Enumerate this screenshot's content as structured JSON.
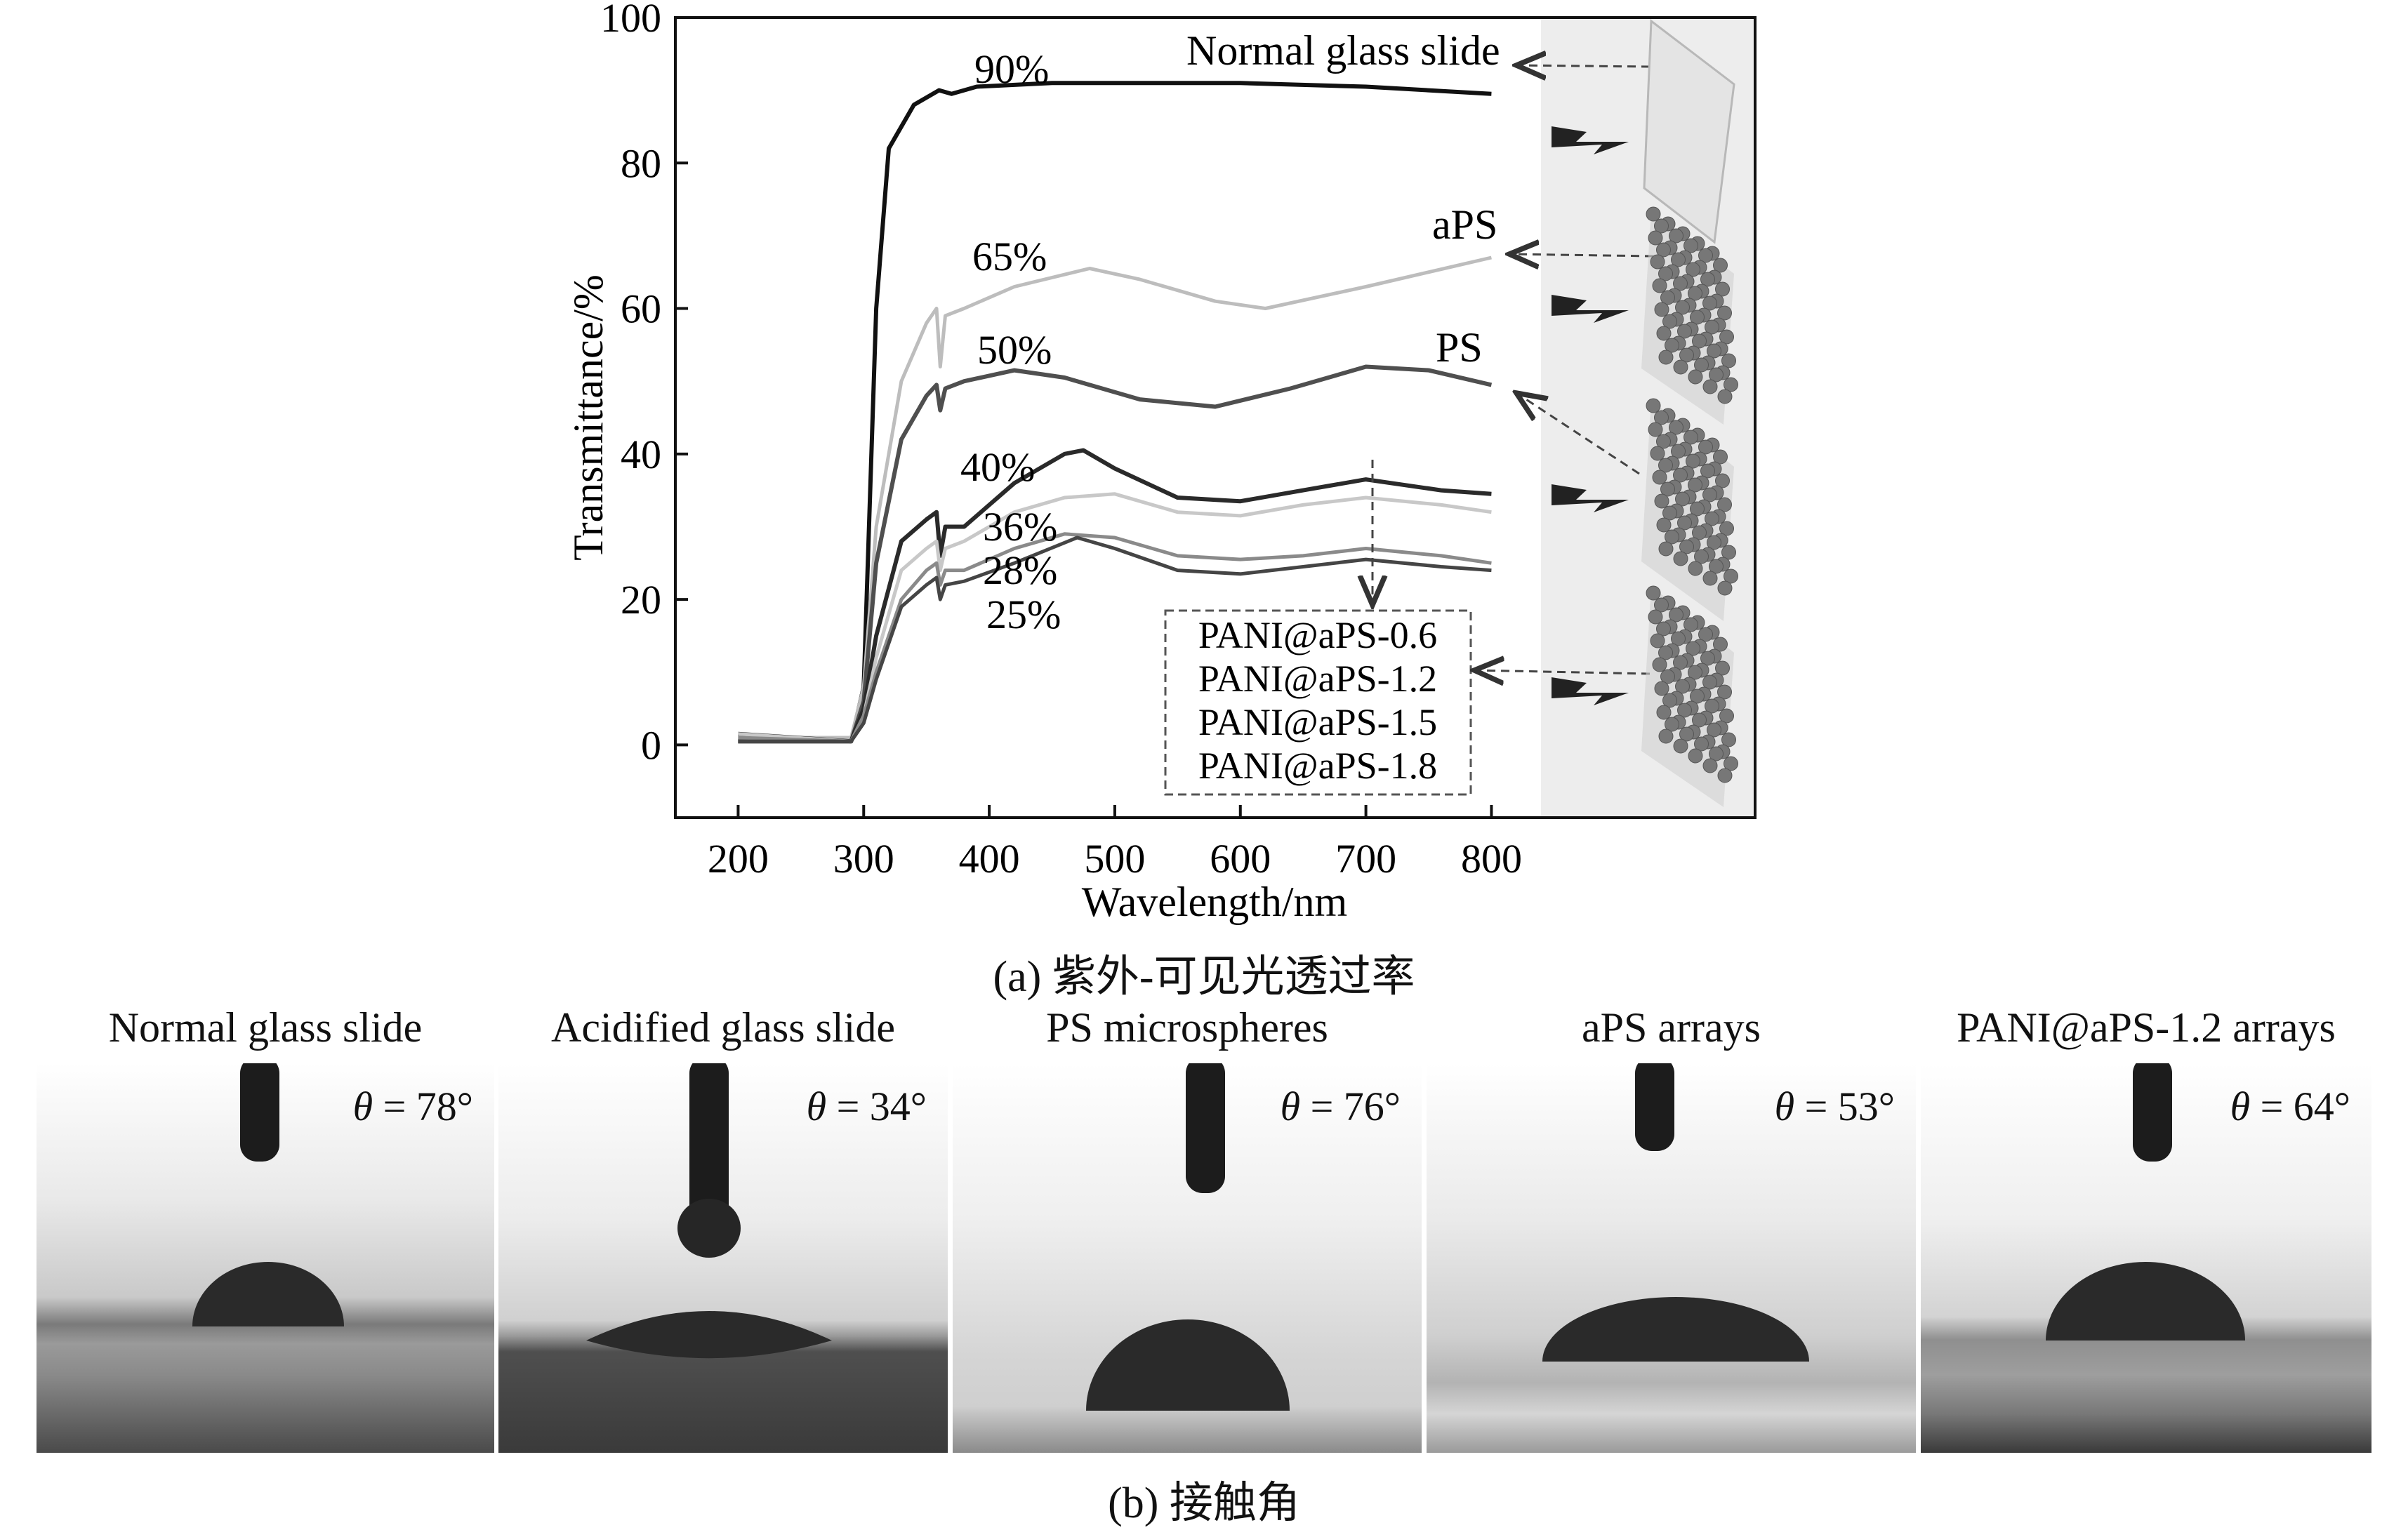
{
  "chart_data": {
    "type": "line",
    "xlabel": "Wavelength/nm",
    "ylabel": "Transmittance/%",
    "xlim": [
      150,
      1010
    ],
    "ylim": [
      -10,
      100
    ],
    "xticks": [
      200,
      300,
      400,
      500,
      600,
      700,
      800
    ],
    "yticks": [
      0,
      20,
      40,
      60,
      80,
      100
    ],
    "series": [
      {
        "name": "Normal glass slide",
        "color": "#111111",
        "width": 6,
        "points": [
          [
            200,
            0.5
          ],
          [
            290,
            0.5
          ],
          [
            300,
            8
          ],
          [
            310,
            60
          ],
          [
            320,
            82
          ],
          [
            340,
            88
          ],
          [
            360,
            90
          ],
          [
            370,
            89.5
          ],
          [
            390,
            90.5
          ],
          [
            450,
            91
          ],
          [
            600,
            91
          ],
          [
            700,
            90.5
          ],
          [
            800,
            89.5
          ]
        ]
      },
      {
        "name": "aPS",
        "color": "#bdbdbd",
        "width": 5,
        "points": [
          [
            200,
            1
          ],
          [
            290,
            1
          ],
          [
            300,
            8
          ],
          [
            310,
            30
          ],
          [
            330,
            50
          ],
          [
            350,
            58
          ],
          [
            358,
            60
          ],
          [
            361,
            52
          ],
          [
            365,
            59
          ],
          [
            380,
            60
          ],
          [
            420,
            63
          ],
          [
            480,
            65.5
          ],
          [
            520,
            64
          ],
          [
            580,
            61
          ],
          [
            620,
            60
          ],
          [
            700,
            63
          ],
          [
            800,
            67
          ]
        ]
      },
      {
        "name": "PS",
        "color": "#4f4f4f",
        "width": 6,
        "points": [
          [
            200,
            0.5
          ],
          [
            290,
            0.5
          ],
          [
            300,
            6
          ],
          [
            310,
            25
          ],
          [
            330,
            42
          ],
          [
            350,
            48
          ],
          [
            358,
            49.5
          ],
          [
            361,
            46
          ],
          [
            365,
            49
          ],
          [
            380,
            50
          ],
          [
            420,
            51.5
          ],
          [
            460,
            50.5
          ],
          [
            520,
            47.5
          ],
          [
            580,
            46.5
          ],
          [
            640,
            49
          ],
          [
            700,
            52
          ],
          [
            750,
            51.5
          ],
          [
            800,
            49.5
          ]
        ]
      },
      {
        "name": "PANI@aPS-0.6",
        "color": "#2a2a2a",
        "width": 6,
        "points": [
          [
            200,
            1.5
          ],
          [
            290,
            0.5
          ],
          [
            300,
            5
          ],
          [
            310,
            15
          ],
          [
            330,
            28
          ],
          [
            350,
            31
          ],
          [
            358,
            32
          ],
          [
            361,
            26
          ],
          [
            365,
            30
          ],
          [
            380,
            30
          ],
          [
            420,
            36
          ],
          [
            460,
            40
          ],
          [
            475,
            40.5
          ],
          [
            500,
            38
          ],
          [
            550,
            34
          ],
          [
            600,
            33.5
          ],
          [
            650,
            35
          ],
          [
            700,
            36.5
          ],
          [
            760,
            35
          ],
          [
            800,
            34.5
          ]
        ]
      },
      {
        "name": "PANI@aPS-1.2",
        "color": "#c8c8c8",
        "width": 5,
        "points": [
          [
            200,
            1.5
          ],
          [
            290,
            0.5
          ],
          [
            300,
            4
          ],
          [
            310,
            12
          ],
          [
            330,
            24
          ],
          [
            350,
            27
          ],
          [
            358,
            28
          ],
          [
            361,
            24
          ],
          [
            365,
            27
          ],
          [
            380,
            28
          ],
          [
            420,
            32
          ],
          [
            460,
            34
          ],
          [
            500,
            34.5
          ],
          [
            550,
            32
          ],
          [
            600,
            31.5
          ],
          [
            650,
            33
          ],
          [
            700,
            34
          ],
          [
            760,
            33
          ],
          [
            800,
            32
          ]
        ]
      },
      {
        "name": "PANI@aPS-1.5",
        "color": "#8a8a8a",
        "width": 5,
        "points": [
          [
            200,
            1
          ],
          [
            290,
            0.5
          ],
          [
            300,
            4
          ],
          [
            310,
            10
          ],
          [
            330,
            20
          ],
          [
            350,
            24
          ],
          [
            358,
            25
          ],
          [
            361,
            22
          ],
          [
            365,
            24
          ],
          [
            380,
            24
          ],
          [
            420,
            27
          ],
          [
            460,
            29
          ],
          [
            500,
            28.5
          ],
          [
            550,
            26
          ],
          [
            600,
            25.5
          ],
          [
            650,
            26
          ],
          [
            700,
            27
          ],
          [
            760,
            26
          ],
          [
            800,
            25
          ]
        ]
      },
      {
        "name": "PANI@aPS-1.8",
        "color": "#454545",
        "width": 5,
        "points": [
          [
            200,
            0.5
          ],
          [
            290,
            0.5
          ],
          [
            300,
            3
          ],
          [
            310,
            9
          ],
          [
            330,
            19
          ],
          [
            350,
            22
          ],
          [
            358,
            23
          ],
          [
            361,
            20
          ],
          [
            365,
            22
          ],
          [
            380,
            22.5
          ],
          [
            420,
            25
          ],
          [
            470,
            28.5
          ],
          [
            500,
            27
          ],
          [
            550,
            24
          ],
          [
            600,
            23.5
          ],
          [
            650,
            24.5
          ],
          [
            700,
            25.5
          ],
          [
            760,
            24.5
          ],
          [
            800,
            24
          ]
        ]
      }
    ],
    "annotations": {
      "percents": [
        "90%",
        "65%",
        "50%",
        "40%",
        "36%",
        "28%",
        "25%"
      ],
      "normal": "Normal glass slide",
      "aps": "aPS",
      "ps": "PS",
      "legend_box": [
        "PANI@aPS-0.6",
        "PANI@aPS-1.2",
        "PANI@aPS-1.5",
        "PANI@aPS-1.8"
      ]
    }
  },
  "captions": {
    "a": "(a) 紫外-可见光透过率",
    "b": "(b) 接触角"
  },
  "panels": [
    {
      "title": "Normal glass slide",
      "theta_symbol": "θ",
      "theta_value": " = 78°"
    },
    {
      "title": "Acidified glass slide",
      "theta_symbol": "θ",
      "theta_value": " = 34°"
    },
    {
      "title": "PS microspheres",
      "theta_symbol": "θ",
      "theta_value": " = 76°"
    },
    {
      "title": "aPS arrays",
      "theta_symbol": "θ",
      "theta_value": " = 53°"
    },
    {
      "title": "PANI@aPS-1.2 arrays",
      "theta_symbol": "θ",
      "theta_value": " = 64°"
    }
  ]
}
